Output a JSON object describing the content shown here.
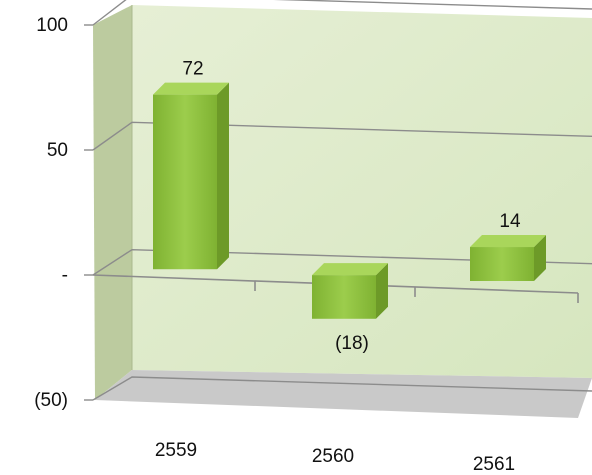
{
  "chart_data": {
    "type": "bar",
    "categories": [
      "2559",
      "2560",
      "2561"
    ],
    "values": [
      72,
      -18,
      14
    ],
    "data_labels": [
      "72",
      "(18)",
      "14"
    ],
    "y_ticks": [
      {
        "value": 100,
        "label": "100"
      },
      {
        "value": 50,
        "label": "50"
      },
      {
        "value": 0,
        "label": "-"
      },
      {
        "value": -50,
        "label": "(50)"
      }
    ],
    "ylim": [
      -50,
      100
    ],
    "grid": true,
    "style": "3d",
    "title": "",
    "xlabel": "",
    "ylabel": ""
  },
  "colors": {
    "back_wall": "#e3edd0",
    "side_wall": "#b8c99a",
    "floor": "#c8c8c8",
    "bar_front": "#8fc23f",
    "bar_top": "#a9d65b",
    "bar_side": "#6d9a28",
    "grid": "#8c8c8c"
  }
}
